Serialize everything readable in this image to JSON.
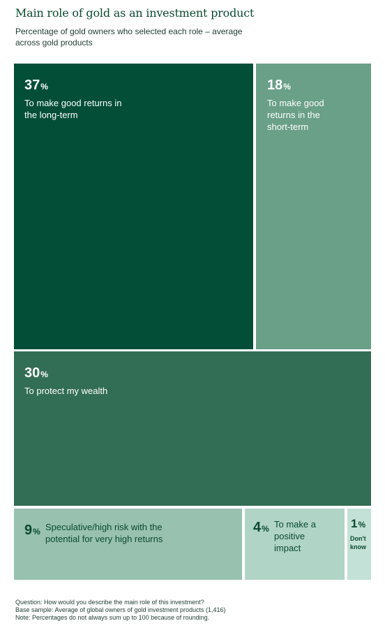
{
  "title": "Main role of gold as an investment product",
  "subtitle": "Percentage of gold owners who selected each role – average across gold products",
  "chart_data": {
    "type": "treemap",
    "unit": "%",
    "items": [
      {
        "value": 37,
        "label": "To make good returns in the long-term",
        "color": "#024e37"
      },
      {
        "value": 18,
        "label": "To make good returns in the short-term",
        "color": "#6a9f88"
      },
      {
        "value": 30,
        "label": "To protect my wealth",
        "color": "#326d55"
      },
      {
        "value": 9,
        "label": "Speculative/high risk with the potential for very high returns",
        "color": "#98c1b0"
      },
      {
        "value": 4,
        "label": "To make a positive impact",
        "color": "#b0d4c6"
      },
      {
        "value": 1,
        "label": "Don't know",
        "color": "#c3e1d6"
      }
    ]
  },
  "footnotes": [
    "Question: How would you describe the main role of this investment?",
    "Base sample: Average of global owners of gold investment products (1,416)",
    "Note: Percentages do not always sum up to 100 because of rounding."
  ]
}
